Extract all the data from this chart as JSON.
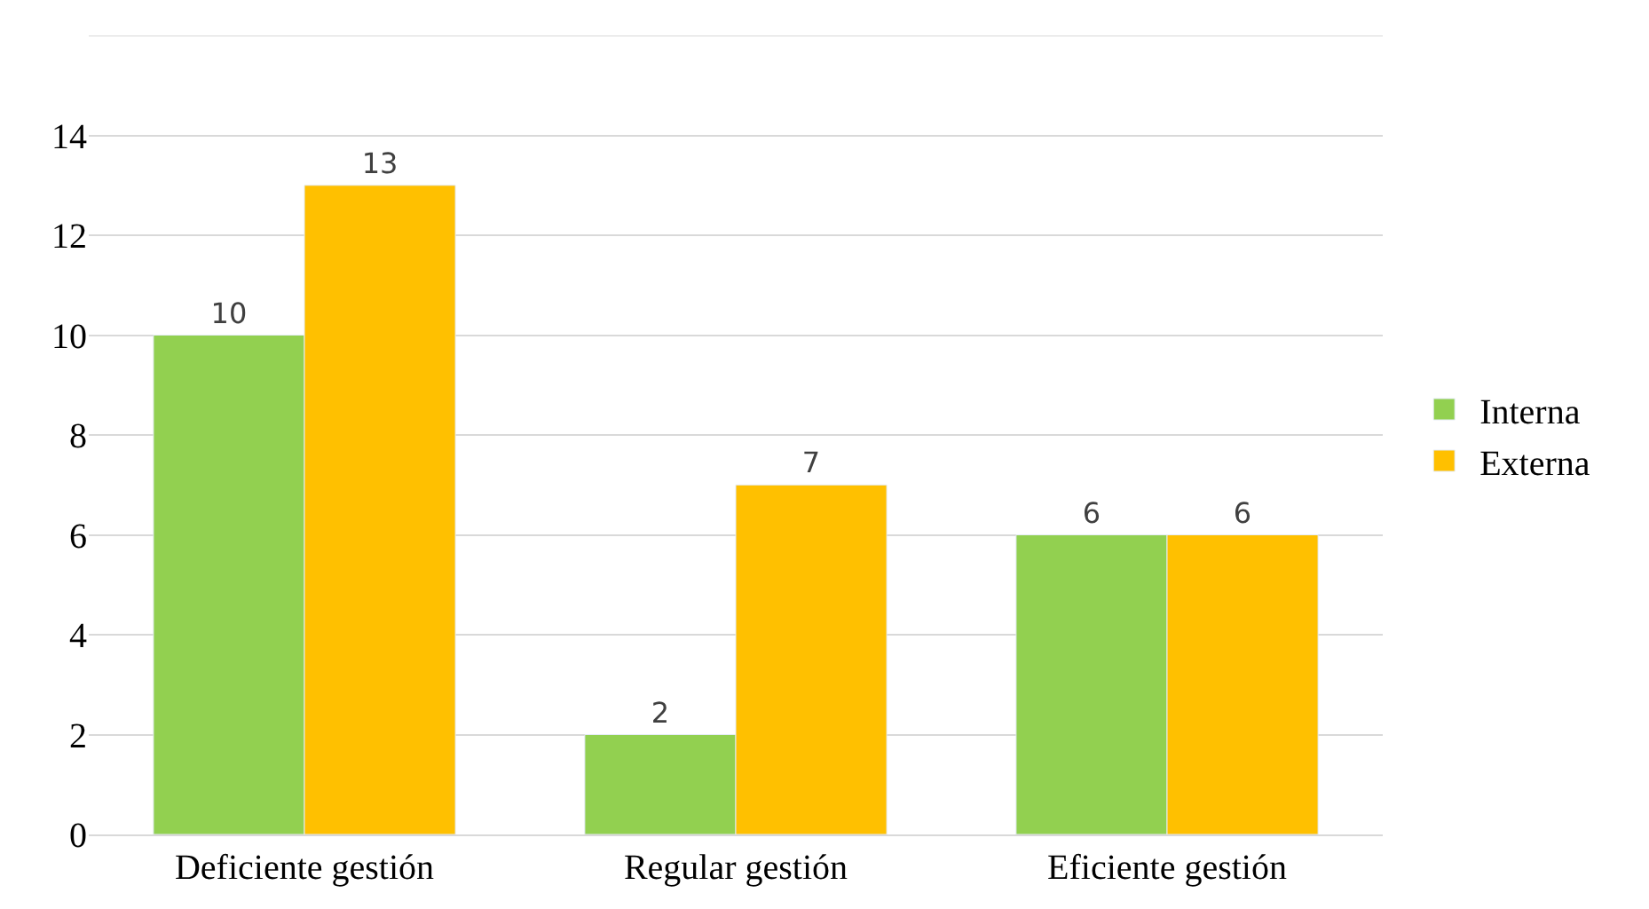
{
  "chart_data": {
    "type": "bar",
    "categories": [
      "Deficiente gestión",
      "Regular gestión",
      "Eficiente gestión"
    ],
    "series": [
      {
        "name": "Interna",
        "color": "#92d050",
        "values": [
          10,
          2,
          6
        ]
      },
      {
        "name": "Externa",
        "color": "#ffc000",
        "values": [
          13,
          7,
          6
        ]
      }
    ],
    "ylim": [
      0,
      16
    ],
    "yticks": [
      0,
      2,
      4,
      6,
      8,
      10,
      12,
      14,
      {
        "value": 16,
        "label": null
      }
    ],
    "grid": "y",
    "legend": "right",
    "data_labels": true
  }
}
